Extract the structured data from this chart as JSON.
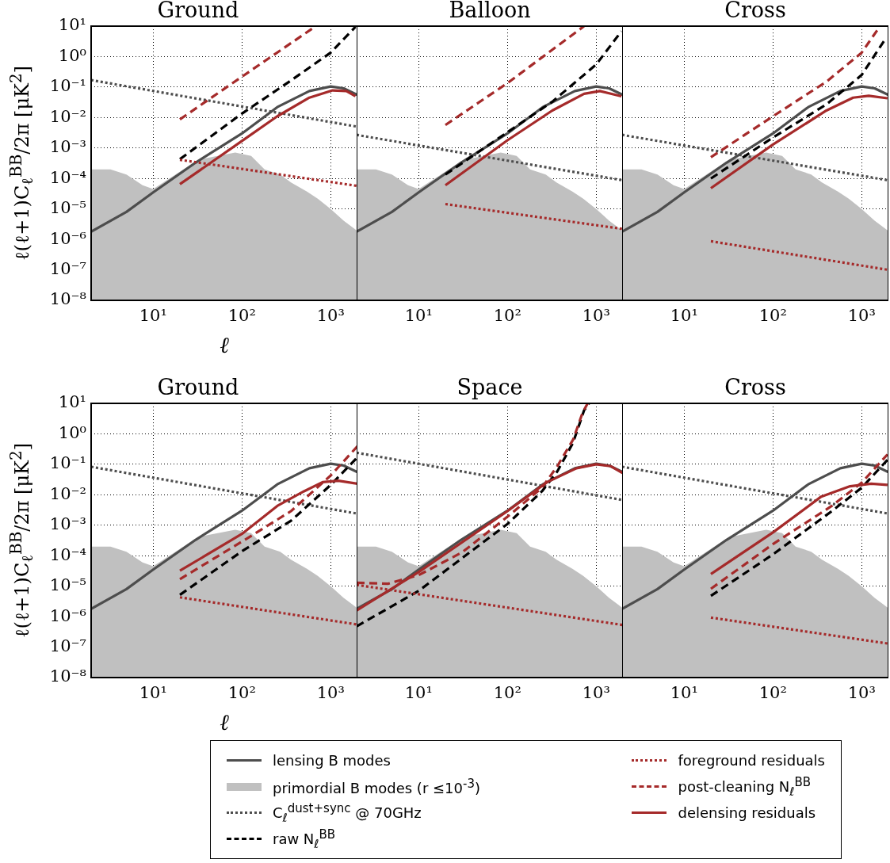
{
  "chart_data": [
    {
      "type": "line",
      "title": "Ground",
      "xlabel": "ℓ",
      "ylabel": "ℓ(ℓ+1)C$_{ℓ}$$^{BB}$/2π [μK$^{2}$]",
      "log": "xy",
      "grid": true,
      "marker": "none",
      "legend": "bottom",
      "xlim": [
        2,
        2000
      ],
      "ylim": [
        1e-08,
        10
      ],
      "xticks": [
        {
          "value": 10,
          "label": "10¹"
        },
        {
          "value": 100,
          "label": "10²"
        },
        {
          "value": 1000,
          "label": "10³"
        }
      ],
      "yticks": [
        {
          "value": 1e-08,
          "label": "10⁻⁸"
        },
        {
          "value": 1e-07,
          "label": "10⁻⁷"
        },
        {
          "value": 1e-06,
          "label": "10⁻⁶"
        },
        {
          "value": 1e-05,
          "label": "10⁻⁵"
        },
        {
          "value": 0.0001,
          "label": "10⁻⁴"
        },
        {
          "value": 0.001,
          "label": "10⁻³"
        },
        {
          "value": 0.01,
          "label": "10⁻²"
        },
        {
          "value": 0.1,
          "label": "10⁻¹"
        },
        {
          "value": 1,
          "label": "10⁰"
        },
        {
          "value": 10,
          "label": "10¹"
        }
      ],
      "series": [
        {
          "name": "lensing B modes",
          "color": "#4d4d4d",
          "x": [
            2,
            5,
            10,
            30,
            100,
            250,
            575,
            1000,
            1400,
            2000
          ],
          "values": [
            1.8e-06,
            8e-06,
            3.5e-05,
            0.00033,
            0.003,
            0.022,
            0.074,
            0.105,
            0.091,
            0.055
          ]
        },
        {
          "name": "primordial B modes (r ≤10$^{-3}$)",
          "type": "area",
          "color": "#c0c0c0",
          "x": [
            2,
            3.3,
            5,
            7.6,
            10,
            32,
            84,
            127,
            180,
            270,
            357,
            540,
            710,
            1000,
            1400,
            2000
          ],
          "values": [
            0.0002,
            0.0002,
            0.000135,
            6e-05,
            4.5e-05,
            0.00041,
            0.00071,
            0.00055,
            0.0002,
            0.000135,
            7.4e-05,
            3.7e-05,
            2.2e-05,
            1e-05,
            4.1e-06,
            1.9e-06
          ]
        },
        {
          "name": "C$_{ℓ}$$^{dust+sync}$ @ 70GHz",
          "color": "#4d4d4d",
          "line_style": "dotted",
          "x": [
            2,
            2000
          ],
          "values": [
            0.17,
            0.005
          ]
        },
        {
          "name": "raw N$_{ℓ}$$^{BB}$",
          "color": "#000000",
          "line_style": "dashed",
          "x": [
            20,
            100,
            357,
            1000,
            1900
          ],
          "values": [
            0.00043,
            0.0135,
            0.165,
            1.35,
            9.5
          ]
        },
        {
          "name": "foreground residuals",
          "color": "#a52a2a",
          "line_style": "dotted",
          "x": [
            20,
            2000
          ],
          "values": [
            0.00041,
            5.7e-05
          ]
        },
        {
          "name": "post-cleaning N$_{ℓ}$$^{BB}$",
          "color": "#a52a2a",
          "line_style": "dashed",
          "x": [
            20,
            100,
            680
          ],
          "values": [
            0.0087,
            0.22,
            10
          ]
        },
        {
          "name": "delensing residuals",
          "color": "#a52a2a",
          "x": [
            20,
            100,
            250,
            575,
            1050,
            1500,
            1900
          ],
          "values": [
            6.5e-05,
            0.0017,
            0.011,
            0.045,
            0.078,
            0.074,
            0.05
          ]
        }
      ]
    },
    {
      "type": "line",
      "title": "Balloon",
      "log": "xy",
      "grid": true,
      "marker": "none",
      "tick_labels": "x",
      "xlim": [
        2,
        2000
      ],
      "ylim": [
        1e-08,
        10
      ],
      "xticks": [
        {
          "value": 10,
          "label": "10¹"
        },
        {
          "value": 100,
          "label": "10²"
        },
        {
          "value": 1000,
          "label": "10³"
        }
      ],
      "yticks": [
        1e-08,
        1e-07,
        1e-06,
        1e-05,
        0.0001,
        0.001,
        0.01,
        0.1,
        1,
        10
      ],
      "series": [
        {
          "color": "#4d4d4d",
          "x": [
            2,
            5,
            10,
            30,
            100,
            250,
            575,
            1000,
            1400,
            2000
          ],
          "values": [
            1.8e-06,
            8e-06,
            3.5e-05,
            0.00033,
            0.003,
            0.022,
            0.074,
            0.105,
            0.091,
            0.055
          ]
        },
        {
          "type": "area",
          "color": "#c0c0c0",
          "x": [
            2,
            3.3,
            5,
            7.6,
            10,
            32,
            84,
            127,
            180,
            270,
            357,
            540,
            710,
            1000,
            1400,
            2000
          ],
          "values": [
            0.0002,
            0.0002,
            0.000135,
            6e-05,
            4.5e-05,
            0.00041,
            0.00071,
            0.00055,
            0.0002,
            0.000135,
            7.4e-05,
            3.7e-05,
            2.2e-05,
            1e-05,
            4.1e-06,
            1.9e-06
          ]
        },
        {
          "color": "#4d4d4d",
          "line_style": "dotted",
          "x": [
            2,
            2000
          ],
          "values": [
            0.0027,
            8.7e-05
          ]
        },
        {
          "color": "#000000",
          "line_style": "dashed",
          "x": [
            20,
            100,
            320,
            1000,
            1925
          ],
          "values": [
            0.000135,
            0.0033,
            0.033,
            0.55,
            6.8
          ]
        },
        {
          "color": "#a52a2a",
          "line_style": "dotted",
          "x": [
            20,
            2000
          ],
          "values": [
            1.45e-05,
            2.2e-06
          ]
        },
        {
          "color": "#a52a2a",
          "line_style": "dashed",
          "x": [
            20,
            100,
            730
          ],
          "values": [
            0.0057,
            0.135,
            10
          ]
        },
        {
          "color": "#a52a2a",
          "x": [
            20,
            100,
            320,
            730,
            1100,
            1925
          ],
          "values": [
            6e-05,
            0.0018,
            0.017,
            0.06,
            0.074,
            0.05
          ]
        }
      ]
    },
    {
      "type": "line",
      "title": "Cross",
      "log": "xy",
      "grid": true,
      "marker": "none",
      "tick_labels": "x",
      "xlim": [
        2,
        2000
      ],
      "ylim": [
        1e-08,
        10
      ],
      "xticks": [
        {
          "value": 10,
          "label": "10¹"
        },
        {
          "value": 100,
          "label": "10²"
        },
        {
          "value": 1000,
          "label": "10³"
        }
      ],
      "yticks": [
        1e-08,
        1e-07,
        1e-06,
        1e-05,
        0.0001,
        0.001,
        0.01,
        0.1,
        1,
        10
      ],
      "series": [
        {
          "color": "#4d4d4d",
          "x": [
            2,
            5,
            10,
            30,
            100,
            250,
            575,
            1000,
            1400,
            2000
          ],
          "values": [
            1.8e-06,
            8e-06,
            3.5e-05,
            0.00033,
            0.003,
            0.022,
            0.074,
            0.105,
            0.091,
            0.055
          ]
        },
        {
          "type": "area",
          "color": "#c0c0c0",
          "x": [
            2,
            3.3,
            5,
            7.6,
            10,
            32,
            84,
            127,
            180,
            270,
            357,
            540,
            710,
            1000,
            1400,
            2000
          ],
          "values": [
            0.0002,
            0.0002,
            0.000135,
            6e-05,
            4.5e-05,
            0.00041,
            0.00071,
            0.00055,
            0.0002,
            0.000135,
            7.4e-05,
            3.7e-05,
            2.2e-05,
            1e-05,
            4.1e-06,
            1.9e-06
          ]
        },
        {
          "color": "#4d4d4d",
          "line_style": "dotted",
          "x": [
            2,
            2000
          ],
          "values": [
            0.0027,
            8.7e-05
          ]
        },
        {
          "color": "#000000",
          "line_style": "dashed",
          "x": [
            20,
            100,
            400,
            1000,
            1880
          ],
          "values": [
            0.0001,
            0.0022,
            0.027,
            0.25,
            4.1
          ]
        },
        {
          "color": "#a52a2a",
          "line_style": "dotted",
          "x": [
            20,
            2000
          ],
          "values": [
            8.7e-07,
            1e-07
          ]
        },
        {
          "color": "#a52a2a",
          "line_style": "dashed",
          "x": [
            20,
            100,
            400,
            1000,
            1530
          ],
          "values": [
            0.0005,
            0.011,
            0.15,
            1.35,
            8.1
          ]
        },
        {
          "color": "#a52a2a",
          "x": [
            20,
            100,
            400,
            800,
            1200,
            1950
          ],
          "values": [
            4.8e-05,
            0.0013,
            0.017,
            0.045,
            0.052,
            0.043
          ]
        }
      ]
    },
    {
      "type": "line",
      "title": "Ground",
      "xlabel": "ℓ",
      "ylabel": "ℓ(ℓ+1)C$_{ℓ}$$^{BB}$/2π [μK$^{2}$]",
      "log": "xy",
      "grid": true,
      "marker": "none",
      "xlim": [
        2,
        2000
      ],
      "ylim": [
        1e-08,
        10
      ],
      "xticks": [
        {
          "value": 10,
          "label": "10¹"
        },
        {
          "value": 100,
          "label": "10²"
        },
        {
          "value": 1000,
          "label": "10³"
        }
      ],
      "yticks": [
        {
          "value": 1e-08,
          "label": "10⁻⁸"
        },
        {
          "value": 1e-07,
          "label": "10⁻⁷"
        },
        {
          "value": 1e-06,
          "label": "10⁻⁶"
        },
        {
          "value": 1e-05,
          "label": "10⁻⁵"
        },
        {
          "value": 0.0001,
          "label": "10⁻⁴"
        },
        {
          "value": 0.001,
          "label": "10⁻³"
        },
        {
          "value": 0.01,
          "label": "10⁻²"
        },
        {
          "value": 0.1,
          "label": "10⁻¹"
        },
        {
          "value": 1,
          "label": "10⁰"
        },
        {
          "value": 10,
          "label": "10¹"
        }
      ],
      "series": [
        {
          "color": "#4d4d4d",
          "x": [
            2,
            5,
            10,
            30,
            100,
            250,
            575,
            1000,
            1400,
            2000
          ],
          "values": [
            1.8e-06,
            8e-06,
            3.5e-05,
            0.00033,
            0.003,
            0.022,
            0.074,
            0.105,
            0.091,
            0.055
          ]
        },
        {
          "type": "area",
          "color": "#c0c0c0",
          "x": [
            2,
            3.3,
            5,
            7.6,
            10,
            32,
            84,
            127,
            180,
            270,
            357,
            540,
            710,
            1000,
            1400,
            2000
          ],
          "values": [
            0.0002,
            0.0002,
            0.000135,
            6e-05,
            4.5e-05,
            0.00041,
            0.00071,
            0.00055,
            0.0002,
            0.000135,
            7.4e-05,
            3.7e-05,
            2.2e-05,
            1e-05,
            4.1e-06,
            1.9e-06
          ]
        },
        {
          "color": "#4d4d4d",
          "line_style": "dotted",
          "x": [
            2,
            2000
          ],
          "values": [
            0.083,
            0.0024
          ]
        },
        {
          "color": "#000000",
          "line_style": "dashed",
          "x": [
            20,
            100,
            357,
            1000,
            2000
          ],
          "values": [
            5.2e-06,
            0.00014,
            0.0014,
            0.021,
            0.17
          ]
        },
        {
          "color": "#a52a2a",
          "line_style": "dotted",
          "x": [
            20,
            2000
          ],
          "values": [
            4.3e-06,
            5.5e-07
          ]
        },
        {
          "color": "#a52a2a",
          "line_style": "dashed",
          "x": [
            20,
            100,
            357,
            1000,
            2000
          ],
          "values": [
            1.7e-05,
            0.00029,
            0.0029,
            0.043,
            0.39
          ]
        },
        {
          "color": "#a52a2a",
          "x": [
            20,
            100,
            250,
            500,
            810,
            1220,
            2000
          ],
          "values": [
            3.2e-05,
            0.00052,
            0.0043,
            0.013,
            0.026,
            0.029,
            0.023
          ]
        }
      ]
    },
    {
      "type": "line",
      "title": "Space",
      "log": "xy",
      "grid": true,
      "marker": "none",
      "tick_labels": "x",
      "xlim": [
        2,
        2000
      ],
      "ylim": [
        1e-08,
        10
      ],
      "xticks": [
        {
          "value": 10,
          "label": "10¹"
        },
        {
          "value": 100,
          "label": "10²"
        },
        {
          "value": 1000,
          "label": "10³"
        }
      ],
      "yticks": [
        1e-08,
        1e-07,
        1e-06,
        1e-05,
        0.0001,
        0.001,
        0.01,
        0.1,
        1,
        10
      ],
      "series": [
        {
          "color": "#4d4d4d",
          "x": [
            2,
            5,
            10,
            30,
            100,
            250,
            575,
            1000,
            1400,
            2000
          ],
          "values": [
            1.8e-06,
            8e-06,
            3.5e-05,
            0.00033,
            0.003,
            0.022,
            0.074,
            0.105,
            0.091,
            0.055
          ]
        },
        {
          "type": "area",
          "color": "#c0c0c0",
          "x": [
            2,
            3.3,
            5,
            7.6,
            10,
            32,
            84,
            127,
            180,
            270,
            357,
            540,
            710,
            1000,
            1400,
            2000
          ],
          "values": [
            0.0002,
            0.0002,
            0.000135,
            6e-05,
            4.5e-05,
            0.00041,
            0.00071,
            0.00055,
            0.0002,
            0.000135,
            7.4e-05,
            3.7e-05,
            2.2e-05,
            1e-05,
            4.1e-06,
            1.9e-06
          ]
        },
        {
          "color": "#4d4d4d",
          "line_style": "dotted",
          "x": [
            2,
            2000
          ],
          "values": [
            0.24,
            0.0067
          ]
        },
        {
          "color": "#000000",
          "line_style": "dashed",
          "x": [
            2,
            10,
            100,
            245,
            365,
            550,
            730,
            830
          ],
          "values": [
            4.8e-07,
            7e-06,
            0.0011,
            0.013,
            0.059,
            0.52,
            5.9,
            10
          ]
        },
        {
          "color": "#a52a2a",
          "line_style": "dotted",
          "x": [
            2,
            2000
          ],
          "values": [
            1.1e-05,
            5.3e-07
          ]
        },
        {
          "color": "#a52a2a",
          "line_style": "dashed",
          "x": [
            2,
            4.5,
            10,
            31,
            100,
            245,
            365,
            550,
            700,
            800
          ],
          "values": [
            1.3e-05,
            1.2e-05,
            2.3e-05,
            0.00013,
            0.0019,
            0.017,
            0.087,
            0.65,
            4.8,
            10
          ]
        },
        {
          "color": "#a52a2a",
          "x": [
            2,
            10,
            100,
            280,
            600,
            1000,
            1450,
            1975
          ],
          "values": [
            1.6e-06,
            2.9e-05,
            0.0029,
            0.026,
            0.074,
            0.1,
            0.087,
            0.052
          ]
        }
      ]
    },
    {
      "type": "line",
      "title": "Cross",
      "log": "xy",
      "grid": true,
      "marker": "none",
      "tick_labels": "x",
      "xlim": [
        2,
        2000
      ],
      "ylim": [
        1e-08,
        10
      ],
      "xticks": [
        {
          "value": 10,
          "label": "10¹"
        },
        {
          "value": 100,
          "label": "10²"
        },
        {
          "value": 1000,
          "label": "10³"
        }
      ],
      "yticks": [
        1e-08,
        1e-07,
        1e-06,
        1e-05,
        0.0001,
        0.001,
        0.01,
        0.1,
        1,
        10
      ],
      "series": [
        {
          "color": "#4d4d4d",
          "x": [
            2,
            5,
            10,
            30,
            100,
            250,
            575,
            1000,
            1400,
            2000
          ],
          "values": [
            1.8e-06,
            8e-06,
            3.5e-05,
            0.00033,
            0.003,
            0.022,
            0.074,
            0.105,
            0.091,
            0.055
          ]
        },
        {
          "type": "area",
          "color": "#c0c0c0",
          "x": [
            2,
            3.3,
            5,
            7.6,
            10,
            32,
            84,
            127,
            180,
            270,
            357,
            540,
            710,
            1000,
            1400,
            2000
          ],
          "values": [
            0.0002,
            0.0002,
            0.000135,
            6e-05,
            4.5e-05,
            0.00041,
            0.00071,
            0.00055,
            0.0002,
            0.000135,
            7.4e-05,
            3.7e-05,
            2.2e-05,
            1e-05,
            4.1e-06,
            1.9e-06
          ]
        },
        {
          "color": "#4d4d4d",
          "line_style": "dotted",
          "x": [
            2,
            2000
          ],
          "values": [
            0.083,
            0.0024
          ]
        },
        {
          "color": "#000000",
          "line_style": "dashed",
          "x": [
            20,
            100,
            460,
            1000,
            1950
          ],
          "values": [
            4.8e-06,
            0.00011,
            0.0029,
            0.017,
            0.14
          ]
        },
        {
          "color": "#a52a2a",
          "line_style": "dotted",
          "x": [
            20,
            2000
          ],
          "values": [
            9.3e-07,
            1.3e-07
          ]
        },
        {
          "color": "#a52a2a",
          "line_style": "dashed",
          "x": [
            20,
            100,
            460,
            1000,
            1950
          ],
          "values": [
            8.2e-06,
            0.00024,
            0.0043,
            0.025,
            0.21
          ]
        },
        {
          "color": "#a52a2a",
          "x": [
            20,
            100,
            350,
            740,
            1280,
            1950
          ],
          "values": [
            2.5e-05,
            0.00058,
            0.0087,
            0.019,
            0.023,
            0.021
          ]
        }
      ]
    }
  ]
}
